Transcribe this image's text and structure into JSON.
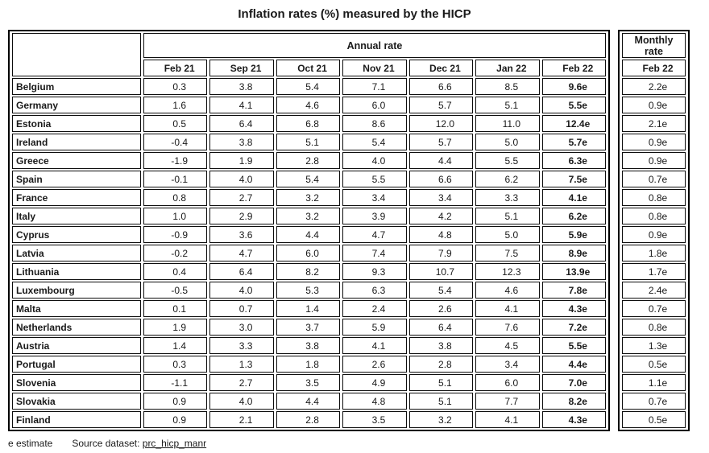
{
  "chart_data": {
    "type": "table",
    "title": "Inflation rates (%) measured by the HICP",
    "annual_group_label": "Annual rate",
    "annual_columns": [
      "Feb 21",
      "Sep 21",
      "Oct 21",
      "Nov 21",
      "Dec 21",
      "Jan 22",
      "Feb 22"
    ],
    "monthly_group_label": "Monthly rate",
    "monthly_column": "Feb 22",
    "rows": [
      {
        "country": "Belgium",
        "annual": [
          "0.3",
          "3.8",
          "5.4",
          "7.1",
          "6.6",
          "8.5",
          "9.6e"
        ],
        "monthly": "2.2e"
      },
      {
        "country": "Germany",
        "annual": [
          "1.6",
          "4.1",
          "4.6",
          "6.0",
          "5.7",
          "5.1",
          "5.5e"
        ],
        "monthly": "0.9e"
      },
      {
        "country": "Estonia",
        "annual": [
          "0.5",
          "6.4",
          "6.8",
          "8.6",
          "12.0",
          "11.0",
          "12.4e"
        ],
        "monthly": "2.1e"
      },
      {
        "country": "Ireland",
        "annual": [
          "-0.4",
          "3.8",
          "5.1",
          "5.4",
          "5.7",
          "5.0",
          "5.7e"
        ],
        "monthly": "0.9e"
      },
      {
        "country": "Greece",
        "annual": [
          "-1.9",
          "1.9",
          "2.8",
          "4.0",
          "4.4",
          "5.5",
          "6.3e"
        ],
        "monthly": "0.9e"
      },
      {
        "country": "Spain",
        "annual": [
          "-0.1",
          "4.0",
          "5.4",
          "5.5",
          "6.6",
          "6.2",
          "7.5e"
        ],
        "monthly": "0.7e"
      },
      {
        "country": "France",
        "annual": [
          "0.8",
          "2.7",
          "3.2",
          "3.4",
          "3.4",
          "3.3",
          "4.1e"
        ],
        "monthly": "0.8e"
      },
      {
        "country": "Italy",
        "annual": [
          "1.0",
          "2.9",
          "3.2",
          "3.9",
          "4.2",
          "5.1",
          "6.2e"
        ],
        "monthly": "0.8e"
      },
      {
        "country": "Cyprus",
        "annual": [
          "-0.9",
          "3.6",
          "4.4",
          "4.7",
          "4.8",
          "5.0",
          "5.9e"
        ],
        "monthly": "0.9e"
      },
      {
        "country": "Latvia",
        "annual": [
          "-0.2",
          "4.7",
          "6.0",
          "7.4",
          "7.9",
          "7.5",
          "8.9e"
        ],
        "monthly": "1.8e"
      },
      {
        "country": "Lithuania",
        "annual": [
          "0.4",
          "6.4",
          "8.2",
          "9.3",
          "10.7",
          "12.3",
          "13.9e"
        ],
        "monthly": "1.7e"
      },
      {
        "country": "Luxembourg",
        "annual": [
          "-0.5",
          "4.0",
          "5.3",
          "6.3",
          "5.4",
          "4.6",
          "7.8e"
        ],
        "monthly": "2.4e"
      },
      {
        "country": "Malta",
        "annual": [
          "0.1",
          "0.7",
          "1.4",
          "2.4",
          "2.6",
          "4.1",
          "4.3e"
        ],
        "monthly": "0.7e"
      },
      {
        "country": "Netherlands",
        "annual": [
          "1.9",
          "3.0",
          "3.7",
          "5.9",
          "6.4",
          "7.6",
          "7.2e"
        ],
        "monthly": "0.8e"
      },
      {
        "country": "Austria",
        "annual": [
          "1.4",
          "3.3",
          "3.8",
          "4.1",
          "3.8",
          "4.5",
          "5.5e"
        ],
        "monthly": "1.3e"
      },
      {
        "country": "Portugal",
        "annual": [
          "0.3",
          "1.3",
          "1.8",
          "2.6",
          "2.8",
          "3.4",
          "4.4e"
        ],
        "monthly": "0.5e"
      },
      {
        "country": "Slovenia",
        "annual": [
          "-1.1",
          "2.7",
          "3.5",
          "4.9",
          "5.1",
          "6.0",
          "7.0e"
        ],
        "monthly": "1.1e"
      },
      {
        "country": "Slovakia",
        "annual": [
          "0.9",
          "4.0",
          "4.4",
          "4.8",
          "5.1",
          "7.7",
          "8.2e"
        ],
        "monthly": "0.7e"
      },
      {
        "country": "Finland",
        "annual": [
          "0.9",
          "2.1",
          "2.8",
          "3.5",
          "3.2",
          "4.1",
          "4.3e"
        ],
        "monthly": "0.5e"
      }
    ]
  },
  "footer": {
    "estimate_note": "e estimate",
    "source_label": "Source dataset:",
    "source_link": "prc_hicp_manr"
  },
  "colors": {
    "text": "#1a1a1a",
    "border": "#000000",
    "background": "#ffffff"
  }
}
